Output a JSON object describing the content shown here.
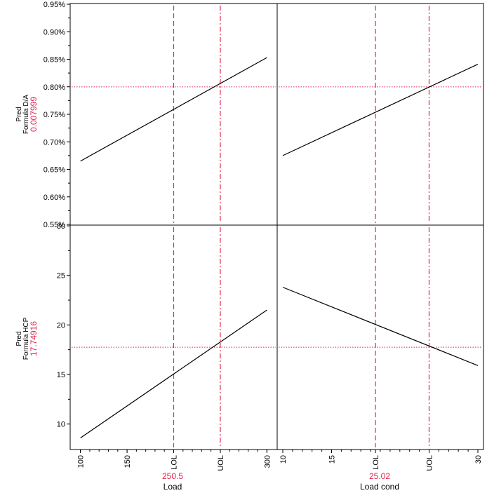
{
  "profiler": {
    "rows": [
      {
        "pred_label": "Pred",
        "response": "Formula D/A",
        "current_value": "0.007999"
      },
      {
        "pred_label": "Pred",
        "response": "Formula HCP",
        "current_value": "17.74916"
      }
    ],
    "columns": [
      {
        "factor": "Load",
        "current_setting": "250.5"
      },
      {
        "factor": "Load cond",
        "current_setting": "25.02"
      }
    ],
    "colors": {
      "curve": "#000000",
      "reference": "#e0264f",
      "frame": "#000000"
    }
  },
  "chart_data": {
    "type": "line",
    "title": "",
    "panels": [
      {
        "row": 0,
        "col": 0,
        "xlabel": "Load",
        "ylabel": "Formula D/A",
        "xlim": [
          95,
          305
        ],
        "ylim": [
          0.0055,
          0.0095
        ],
        "x_ticks": [
          {
            "v": 100,
            "label": "100"
          },
          {
            "v": 150,
            "label": "150"
          },
          {
            "v": 200,
            "label": "LOL"
          },
          {
            "v": 250,
            "label": "UOL"
          },
          {
            "v": 300,
            "label": "300"
          }
        ],
        "y_ticks": [
          {
            "v": 0.0055,
            "label": "0.55%"
          },
          {
            "v": 0.006,
            "label": "0.60%"
          },
          {
            "v": 0.0065,
            "label": "0.65%"
          },
          {
            "v": 0.007,
            "label": "0.70%"
          },
          {
            "v": 0.0075,
            "label": "0.75%"
          },
          {
            "v": 0.008,
            "label": "0.80%"
          },
          {
            "v": 0.0085,
            "label": "0.85%"
          },
          {
            "v": 0.009,
            "label": "0.90%"
          },
          {
            "v": 0.0095,
            "label": "0.95%"
          }
        ],
        "curve": {
          "x": [
            100,
            300
          ],
          "y": [
            0.00665,
            0.00853
          ]
        },
        "ref_lines_x": [
          200,
          250
        ],
        "current_x": 250.5,
        "current_y": 0.007999
      },
      {
        "row": 0,
        "col": 1,
        "xlabel": "Load cond",
        "ylabel": "Formula D/A",
        "xlim": [
          10,
          30
        ],
        "ylim": [
          0.0055,
          0.0095
        ],
        "x_ticks": [
          {
            "v": 10,
            "label": "10"
          },
          {
            "v": 15,
            "label": "15"
          },
          {
            "v": 19.5,
            "label": "LOL"
          },
          {
            "v": 25,
            "label": "UOL"
          },
          {
            "v": 30,
            "label": "30"
          }
        ],
        "y_ticks": [],
        "curve": {
          "x": [
            10,
            30
          ],
          "y": [
            0.00675,
            0.00841
          ]
        },
        "ref_lines_x": [
          19.5,
          25
        ],
        "current_x": 25.02,
        "current_y": 0.007999
      },
      {
        "row": 1,
        "col": 0,
        "xlabel": "Load",
        "ylabel": "Formula HCP",
        "xlim": [
          95,
          305
        ],
        "ylim": [
          7.5,
          30
        ],
        "x_ticks": [
          {
            "v": 100,
            "label": "100"
          },
          {
            "v": 150,
            "label": "150"
          },
          {
            "v": 200,
            "label": "LOL"
          },
          {
            "v": 250,
            "label": "UOL"
          },
          {
            "v": 300,
            "label": "300"
          }
        ],
        "y_ticks": [
          {
            "v": 10,
            "label": "10"
          },
          {
            "v": 15,
            "label": "15"
          },
          {
            "v": 20,
            "label": "20"
          },
          {
            "v": 25,
            "label": "25"
          },
          {
            "v": 30,
            "label": "30"
          }
        ],
        "curve": {
          "x": [
            100,
            300
          ],
          "y": [
            8.6,
            21.5
          ]
        },
        "ref_lines_x": [
          200,
          250
        ],
        "current_x": 250.5,
        "current_y": 17.74916
      },
      {
        "row": 1,
        "col": 1,
        "xlabel": "Load cond",
        "ylabel": "Formula HCP",
        "xlim": [
          10,
          30
        ],
        "ylim": [
          7.5,
          30
        ],
        "x_ticks": [
          {
            "v": 10,
            "label": "10"
          },
          {
            "v": 15,
            "label": "15"
          },
          {
            "v": 19.5,
            "label": "LOL"
          },
          {
            "v": 25,
            "label": "UOL"
          },
          {
            "v": 30,
            "label": "30"
          }
        ],
        "y_ticks": [],
        "curve": {
          "x": [
            10,
            30
          ],
          "y": [
            23.8,
            15.9
          ]
        },
        "ref_lines_x": [
          19.5,
          25
        ],
        "current_x": 25.02,
        "current_y": 17.74916
      }
    ]
  }
}
